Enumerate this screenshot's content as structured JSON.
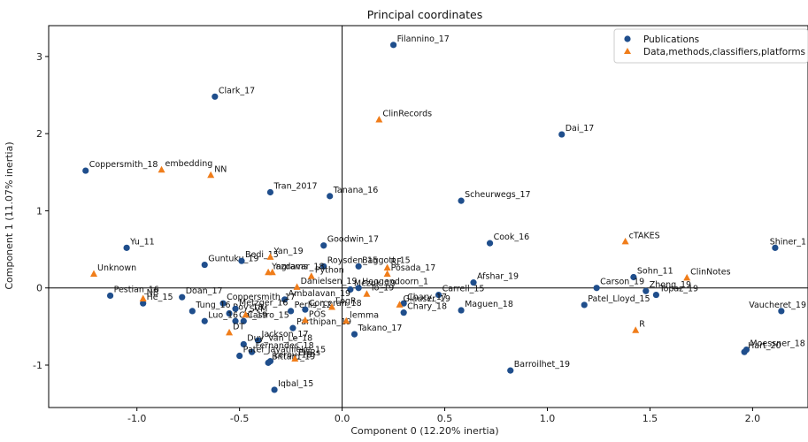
{
  "chart_data": {
    "type": "scatter",
    "title": "Principal coordinates",
    "xlabel": "Component 0 (12.20% inertia)",
    "ylabel": "Component 1 (11.07% inertia)",
    "xlim": [
      -1.43,
      2.27
    ],
    "ylim": [
      -1.55,
      3.4
    ],
    "xticks": [
      -1.0,
      -0.5,
      0.0,
      0.5,
      1.0,
      1.5,
      2.0
    ],
    "xtick_labels": [
      "-1.0",
      "-0.5",
      "0.0",
      "0.5",
      "1.0",
      "1.5",
      "2.0"
    ],
    "yticks": [
      -1,
      0,
      1,
      2,
      3
    ],
    "ytick_labels": [
      "-1",
      "0",
      "1",
      "2",
      "3"
    ],
    "reference_lines": {
      "x": 0,
      "y": 0
    },
    "grid": false,
    "legend_position": "top-right",
    "series": [
      {
        "name": "Publications",
        "marker": "circle",
        "color": "#1f4e8c",
        "points": [
          {
            "label": "Filannino_17",
            "x": 0.25,
            "y": 3.15
          },
          {
            "label": "Clark_17",
            "x": -0.62,
            "y": 2.48
          },
          {
            "label": "Dai_17",
            "x": 1.07,
            "y": 1.99
          },
          {
            "label": "Coppersmith_18",
            "x": -1.25,
            "y": 1.52
          },
          {
            "label": "Tran_2017",
            "x": -0.35,
            "y": 1.24
          },
          {
            "label": "Tanana_16",
            "x": -0.06,
            "y": 1.19
          },
          {
            "label": "Scheurwegs_17",
            "x": 0.58,
            "y": 1.13
          },
          {
            "label": "Yu_11",
            "x": -1.05,
            "y": 0.52
          },
          {
            "label": "Shiner_1",
            "x": 2.11,
            "y": 0.52
          },
          {
            "label": "Cook_16",
            "x": 0.72,
            "y": 0.58
          },
          {
            "label": "Goodwin_17",
            "x": -0.09,
            "y": 0.55
          },
          {
            "label": "Guntuku_19",
            "x": -0.67,
            "y": 0.3
          },
          {
            "label": "Bedi_15",
            "x": -0.49,
            "y": 0.35
          },
          {
            "label": "Roysden_15",
            "x": -0.09,
            "y": 0.28
          },
          {
            "label": "Baggott_15",
            "x": 0.08,
            "y": 0.28
          },
          {
            "label": "Sohn_11",
            "x": 1.42,
            "y": 0.14
          },
          {
            "label": "Afshar_19",
            "x": 0.64,
            "y": 0.07
          },
          {
            "label": "Carson_19",
            "x": 1.24,
            "y": 0.0
          },
          {
            "label": "Zhong_19",
            "x": 1.48,
            "y": -0.04
          },
          {
            "label": "Topaz_19",
            "x": 1.53,
            "y": -0.09
          },
          {
            "label": "Pestian_16",
            "x": -1.13,
            "y": -0.1
          },
          {
            "label": "He_15",
            "x": -0.97,
            "y": -0.2
          },
          {
            "label": "Doan_17",
            "x": -0.78,
            "y": -0.12
          },
          {
            "label": "Carrell_15",
            "x": 0.47,
            "y": -0.09
          },
          {
            "label": "Patel_Lloyd_15",
            "x": 1.18,
            "y": -0.22
          },
          {
            "label": "Vaucheret_19",
            "x": 2.14,
            "y": -0.3
          },
          {
            "label": "Maguen_18",
            "x": 0.58,
            "y": -0.29
          },
          {
            "label": "Chary_17",
            "x": 0.3,
            "y": -0.2
          },
          {
            "label": "Chary_18",
            "x": 0.3,
            "y": -0.32
          },
          {
            "label": "Hoogendoorn_1",
            "x": 0.08,
            "y": 0.0
          },
          {
            "label": "Mezuk_19",
            "x": 0.04,
            "y": -0.02
          },
          {
            "label": "Ambalavan_19",
            "x": -0.28,
            "y": -0.15
          },
          {
            "label": "Coppersmith_17",
            "x": -0.58,
            "y": -0.2
          },
          {
            "label": "Tung_16",
            "x": -0.73,
            "y": -0.3
          },
          {
            "label": "Roy_18",
            "x": -0.55,
            "y": -0.33
          },
          {
            "label": "Metzger_16",
            "x": -0.52,
            "y": -0.27
          },
          {
            "label": "Perlis_12",
            "x": -0.25,
            "y": -0.3
          },
          {
            "label": "Corcoran_18",
            "x": -0.18,
            "y": -0.28
          },
          {
            "label": "Luo_16",
            "x": -0.67,
            "y": -0.43
          },
          {
            "label": "Cai_19",
            "x": -0.52,
            "y": -0.43
          },
          {
            "label": "Castro_15",
            "x": -0.48,
            "y": -0.43
          },
          {
            "label": "Parthipan_19",
            "x": -0.24,
            "y": -0.52
          },
          {
            "label": "Jackson_17",
            "x": -0.41,
            "y": -0.68
          },
          {
            "label": "Duy_Van_Le_18",
            "x": -0.48,
            "y": -0.73
          },
          {
            "label": "Fernandes_18",
            "x": -0.44,
            "y": -0.83
          },
          {
            "label": "Patel_Jayatilleke_15",
            "x": -0.5,
            "y": -0.88
          },
          {
            "label": "Bittard_19",
            "x": -0.36,
            "y": -0.97
          },
          {
            "label": "Leroy_18",
            "x": -0.35,
            "y": -0.95
          },
          {
            "label": "Takano_17",
            "x": 0.06,
            "y": -0.6
          },
          {
            "label": "Barroilhet_19",
            "x": 0.82,
            "y": -1.07
          },
          {
            "label": "Moessner_18",
            "x": 1.97,
            "y": -0.8
          },
          {
            "label": "Hart_20",
            "x": 1.96,
            "y": -0.83
          },
          {
            "label": "Iqbal_15",
            "x": -0.33,
            "y": -1.32
          }
        ]
      },
      {
        "name": "Data,methods,classifiers,platforms",
        "marker": "triangle",
        "color": "#f07d1a",
        "points": [
          {
            "label": "ClinRecords",
            "x": 0.18,
            "y": 2.18
          },
          {
            "label": "embedding",
            "x": -0.88,
            "y": 1.53
          },
          {
            "label": "NN",
            "x": -0.64,
            "y": 1.46
          },
          {
            "label": "cTAKES",
            "x": 1.38,
            "y": 0.6
          },
          {
            "label": "Unknown",
            "x": -1.21,
            "y": 0.18
          },
          {
            "label": "ClinNotes",
            "x": 1.68,
            "y": 0.13
          },
          {
            "label": "ngrams",
            "x": -0.34,
            "y": 0.2
          },
          {
            "label": "Python",
            "x": -0.15,
            "y": 0.15
          },
          {
            "label": "RF",
            "x": 0.22,
            "y": 0.26
          },
          {
            "label": "Posada_17",
            "x": 0.22,
            "y": 0.18
          },
          {
            "label": "NB",
            "x": -0.97,
            "y": -0.14
          },
          {
            "label": "Yan_19",
            "x": -0.35,
            "y": 0.4
          },
          {
            "label": "Yazdavar_18",
            "x": -0.36,
            "y": 0.2
          },
          {
            "label": "Danielsen_19",
            "x": -0.22,
            "y": 0.01
          },
          {
            "label": "To_19",
            "x": 0.12,
            "y": -0.08
          },
          {
            "label": "Glauser_19",
            "x": 0.28,
            "y": -0.22
          },
          {
            "label": "LogR",
            "x": -0.05,
            "y": -0.25
          },
          {
            "label": "POS",
            "x": -0.18,
            "y": -0.42
          },
          {
            "label": "SVM",
            "x": -0.47,
            "y": -0.35
          },
          {
            "label": "DT",
            "x": -0.55,
            "y": -0.58
          },
          {
            "label": "lemma",
            "x": 0.02,
            "y": -0.43
          },
          {
            "label": "EHRs",
            "x": -0.23,
            "y": -0.92
          },
          {
            "label": "R",
            "x": 1.43,
            "y": -0.55
          }
        ]
      }
    ]
  }
}
